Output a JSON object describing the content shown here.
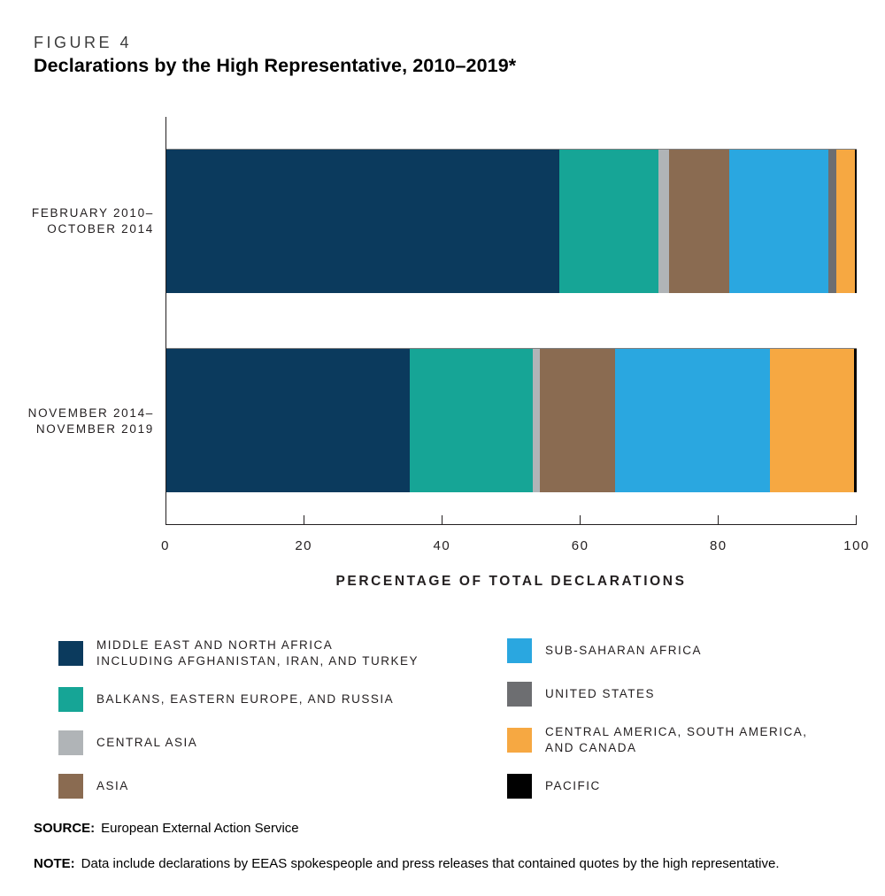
{
  "page": {
    "figure_label": "FIGURE 4",
    "title": "Declarations by the High Representative, 2010–2019*",
    "source_label": "SOURCE:",
    "source_text": "European External Action Service",
    "note_label": "NOTE:",
    "note_text": "Data include declarations by EEAS spokespeople and press releases that contained quotes by the high representative."
  },
  "chart_data": {
    "type": "bar",
    "orientation": "horizontal",
    "stacked": true,
    "title": "Declarations by the High Representative, 2010–2019*",
    "xlabel": "PERCENTAGE OF TOTAL DECLARATIONS",
    "ylabel": "",
    "xlim": [
      0,
      100
    ],
    "xticks": [
      0,
      20,
      40,
      60,
      80,
      100
    ],
    "grid": false,
    "legend_position": "bottom",
    "categories": [
      "February 2010–October 2014",
      "November 2014–November 2019"
    ],
    "categories_display": [
      [
        "FEBRUARY 2010–",
        "OCTOBER 2014"
      ],
      [
        "NOVEMBER 2014–",
        "NOVEMBER 2019"
      ]
    ],
    "series": [
      {
        "name": "Middle East and North Africa including Afghanistan, Iran, and Turkey",
        "slug": "middle-east-and-north-africa",
        "color": "#0b3a5d",
        "values": [
          56.9,
          35.2
        ]
      },
      {
        "name": "Balkans, Eastern Europe, and Russia",
        "slug": "balkans-eastern-europe-and-russia",
        "color": "#16a596",
        "values": [
          14.4,
          17.9
        ]
      },
      {
        "name": "Central Asia",
        "slug": "central-asia",
        "color": "#b0b4b7",
        "values": [
          1.5,
          1.0
        ]
      },
      {
        "name": "Asia",
        "slug": "asia",
        "color": "#8a6b51",
        "values": [
          8.8,
          10.9
        ]
      },
      {
        "name": "Sub-Saharan Africa",
        "slug": "sub-saharan-africa",
        "color": "#2aa7e0",
        "values": [
          14.3,
          22.5
        ]
      },
      {
        "name": "United States",
        "slug": "united-states",
        "color": "#6d6e71",
        "values": [
          1.1,
          0
        ]
      },
      {
        "name": "Central America, South America, and Canada",
        "slug": "central-america-south-america-and-canada",
        "color": "#f6a842",
        "values": [
          2.8,
          12.1
        ]
      },
      {
        "name": "Pacific",
        "slug": "pacific",
        "color": "#010101",
        "values": [
          0.2,
          0.4
        ]
      }
    ],
    "legend_columns": [
      [
        {
          "slug": "middle-east-and-north-africa",
          "color": "#0b3a5d",
          "lines": [
            "MIDDLE EAST AND NORTH AFRICA",
            "INCLUDING AFGHANISTAN, IRAN, AND TURKEY"
          ]
        },
        {
          "slug": "balkans-eastern-europe-and-russia",
          "color": "#16a596",
          "lines": [
            "BALKANS, EASTERN EUROPE, AND RUSSIA"
          ]
        },
        {
          "slug": "central-asia",
          "color": "#b0b4b7",
          "lines": [
            "CENTRAL ASIA"
          ]
        },
        {
          "slug": "asia",
          "color": "#8a6b51",
          "lines": [
            "ASIA"
          ]
        }
      ],
      [
        {
          "slug": "sub-saharan-africa",
          "color": "#2aa7e0",
          "lines": [
            "SUB-SAHARAN AFRICA"
          ]
        },
        {
          "slug": "united-states",
          "color": "#6d6e71",
          "lines": [
            "UNITED STATES"
          ]
        },
        {
          "slug": "central-america-south-america-and-canada",
          "color": "#f6a842",
          "lines": [
            "CENTRAL AMERICA, SOUTH AMERICA,",
            "AND CANADA"
          ]
        },
        {
          "slug": "pacific",
          "color": "#010101",
          "lines": [
            "PACIFIC"
          ]
        }
      ]
    ]
  }
}
